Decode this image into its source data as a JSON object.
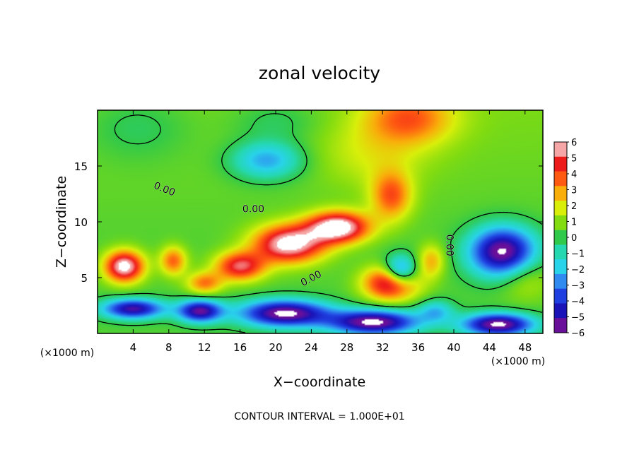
{
  "chart_data": {
    "type": "heatmap",
    "title": "zonal velocity",
    "xlabel": "X−coordinate",
    "ylabel": "Z−coordinate",
    "x_unit_left": "(×1000 m)",
    "x_unit_right": "(×1000 m)",
    "xlim": [
      0,
      50
    ],
    "ylim": [
      0,
      20
    ],
    "x_ticks": [
      4,
      8,
      12,
      16,
      20,
      24,
      28,
      32,
      36,
      40,
      44,
      48
    ],
    "y_ticks": [
      5,
      10,
      15
    ],
    "colorbar": {
      "min": -6,
      "max": 6,
      "tick_labels": [
        "6",
        "5",
        "4",
        "3",
        "2",
        "1",
        "0",
        "−1",
        "−2",
        "−3",
        "−4",
        "−5",
        "−6"
      ],
      "colors_low_to_high": [
        "#6a0f9a",
        "#1a13b8",
        "#1f3fe0",
        "#2f8bf0",
        "#29d3ea",
        "#25d8b0",
        "#31c94a",
        "#82dc10",
        "#d9ef0a",
        "#f9ae0a",
        "#ff5a12",
        "#ee1b1b",
        "#f6a6a6"
      ]
    },
    "contour_labels": [
      "0.00",
      "0.00",
      "0.00",
      "0.00"
    ],
    "footer": "CONTOUR INTERVAL = 1.000E+01",
    "features": [
      {
        "kind": "jet",
        "sign": "negative",
        "x": 19,
        "z": 15.5,
        "peak": -3.3,
        "sx": 4,
        "sz": 1.7
      },
      {
        "kind": "jet",
        "sign": "negative",
        "x": 4.5,
        "z": 18.5,
        "peak": -1.0,
        "sx": 6,
        "sz": 3
      },
      {
        "kind": "jet",
        "sign": "negative",
        "x": 20,
        "z": 19,
        "peak": -1.0,
        "sx": 5,
        "sz": 2
      },
      {
        "kind": "jet",
        "sign": "positive",
        "x": 35,
        "z": 19.3,
        "peak": 3.2,
        "sx": 5,
        "sz": 2.4
      },
      {
        "kind": "jet",
        "sign": "positive",
        "x": 31,
        "z": 16,
        "peak": 1.2,
        "sx": 6,
        "sz": 3
      },
      {
        "kind": "jet",
        "sign": "positive",
        "x": 33,
        "z": 12.3,
        "peak": 3.5,
        "sx": 2.3,
        "sz": 2.2
      },
      {
        "kind": "jet",
        "sign": "positive",
        "x": 27,
        "z": 9.5,
        "peak": 6.8,
        "sx": 3.5,
        "sz": 1.4
      },
      {
        "kind": "jet",
        "sign": "positive",
        "x": 21.5,
        "z": 8,
        "peak": 6.5,
        "sx": 4,
        "sz": 1.7
      },
      {
        "kind": "jet",
        "sign": "positive",
        "x": 16,
        "z": 6,
        "peak": 5.0,
        "sx": 2.8,
        "sz": 1.3
      },
      {
        "kind": "jet",
        "sign": "positive",
        "x": 12,
        "z": 4.5,
        "peak": 3.2,
        "sx": 2,
        "sz": 1
      },
      {
        "kind": "jet",
        "sign": "positive",
        "x": 3,
        "z": 6,
        "peak": 6.5,
        "sx": 2.2,
        "sz": 1.4
      },
      {
        "kind": "jet",
        "sign": "positive",
        "x": 8.5,
        "z": 6.5,
        "peak": 3.5,
        "sx": 1.5,
        "sz": 1.3
      },
      {
        "kind": "jet",
        "sign": "positive",
        "x": 33,
        "z": 4.5,
        "peak": 6.0,
        "sx": 3,
        "sz": 1.5
      },
      {
        "kind": "jet",
        "sign": "positive",
        "x": 37.5,
        "z": 6.5,
        "peak": 2.5,
        "sx": 1.5,
        "sz": 1.5
      },
      {
        "kind": "jet",
        "sign": "positive",
        "x": 48,
        "z": 5,
        "peak": 1.5,
        "sx": 3,
        "sz": 2
      },
      {
        "kind": "jet",
        "sign": "negative",
        "x": 45.5,
        "z": 7.3,
        "peak": -7.0,
        "sx": 3.7,
        "sz": 2.2
      },
      {
        "kind": "jet",
        "sign": "negative",
        "x": 34,
        "z": 5.5,
        "peak": -5.0,
        "sx": 1.8,
        "sz": 1.4
      },
      {
        "kind": "jet",
        "sign": "negative",
        "x": 4,
        "z": 2.2,
        "peak": -6.0,
        "sx": 3.5,
        "sz": 0.9
      },
      {
        "kind": "jet",
        "sign": "negative",
        "x": 11.5,
        "z": 2,
        "peak": -6.2,
        "sx": 2.5,
        "sz": 1
      },
      {
        "kind": "jet",
        "sign": "negative",
        "x": 21,
        "z": 1.8,
        "peak": -7.0,
        "sx": 5,
        "sz": 1.2
      },
      {
        "kind": "jet",
        "sign": "negative",
        "x": 31,
        "z": 1,
        "peak": -7.0,
        "sx": 5,
        "sz": 1.1
      },
      {
        "kind": "jet",
        "sign": "negative",
        "x": 45,
        "z": 0.8,
        "peak": -7.0,
        "sx": 4,
        "sz": 1
      },
      {
        "kind": "jet",
        "sign": "negative",
        "x": 38,
        "z": 2,
        "peak": -2.5,
        "sx": 2,
        "sz": 1
      }
    ]
  }
}
